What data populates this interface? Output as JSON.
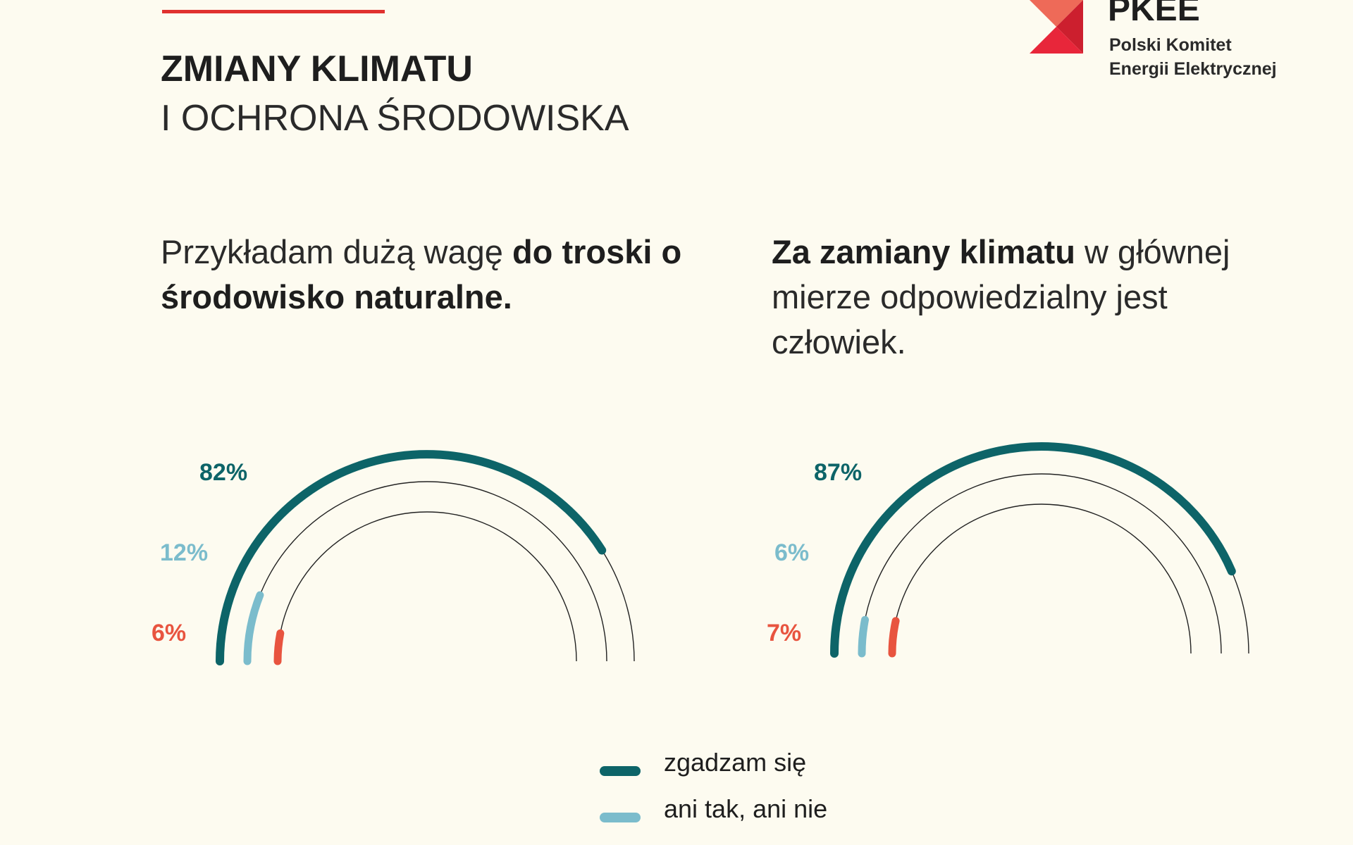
{
  "header": {
    "title": "ZMIANY KLIMATU",
    "subtitle": "I OCHRONA ŚRODOWISKA"
  },
  "logo": {
    "name": "PKEE",
    "line1": "Polski Komitet",
    "line2": "Energii Elektrycznej"
  },
  "questions": [
    {
      "pre": "Przykładam dużą wagę ",
      "bold": "do troski o środowisko naturalne.",
      "post": ""
    },
    {
      "pre": "",
      "bold": "Za zamiany klimatu",
      "post": " w głównej mierze odpowiedzialny jest człowiek."
    }
  ],
  "colors": {
    "agree": "#0d6468",
    "neutral": "#7bbccc",
    "disagree": "#e8543f",
    "accent": "#e0312f",
    "background": "#fdfbf0"
  },
  "chart_data": [
    {
      "type": "radial-bar",
      "scale": "percent of half circle",
      "series": [
        {
          "name": "zgadzam się",
          "value": 82,
          "label": "82%"
        },
        {
          "name": "ani tak, ani nie",
          "value": 12,
          "label": "12%"
        },
        {
          "name": "",
          "value": 6,
          "label": "6%"
        }
      ]
    },
    {
      "type": "radial-bar",
      "scale": "percent of half circle",
      "series": [
        {
          "name": "zgadzam się",
          "value": 87,
          "label": "87%"
        },
        {
          "name": "ani tak, ani nie",
          "value": 6,
          "label": "6%"
        },
        {
          "name": "",
          "value": 7,
          "label": "7%"
        }
      ]
    }
  ],
  "legend": [
    {
      "label": "zgadzam się",
      "color": "#0d6468"
    },
    {
      "label": "ani tak, ani nie",
      "color": "#7bbccc"
    }
  ]
}
